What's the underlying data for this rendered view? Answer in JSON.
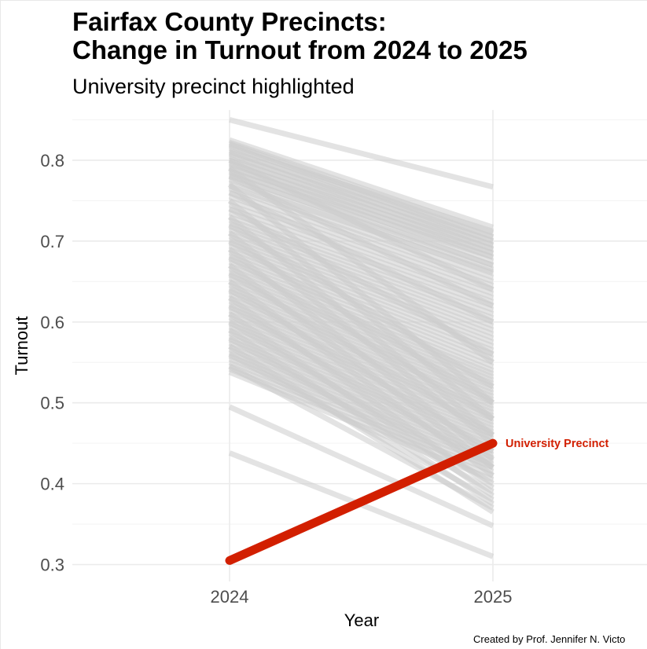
{
  "chart_data": {
    "type": "line",
    "title_lines": [
      "Fairfax County Precincts:",
      "Change in Turnout from 2024 to 2025"
    ],
    "subtitle": "University precinct highlighted",
    "xlabel": "Year",
    "ylabel": "Turnout",
    "categories": [
      "2024",
      "2025"
    ],
    "ylim": [
      0.285,
      0.865
    ],
    "y_ticks": [
      0.3,
      0.4,
      0.5,
      0.6,
      0.7,
      0.8
    ],
    "y_tick_labels": [
      "0.3",
      "0.4",
      "0.5",
      "0.6",
      "0.7",
      "0.8"
    ],
    "grid": true,
    "background_series_color": "#cccccc",
    "highlight": {
      "name": "University Precinct",
      "color": "#d21f00",
      "values": [
        0.305,
        0.45
      ]
    },
    "background_series": [
      [
        0.85,
        0.767
      ],
      [
        0.825,
        0.717
      ],
      [
        0.822,
        0.71
      ],
      [
        0.82,
        0.705
      ],
      [
        0.818,
        0.7
      ],
      [
        0.815,
        0.712
      ],
      [
        0.812,
        0.695
      ],
      [
        0.81,
        0.705
      ],
      [
        0.808,
        0.69
      ],
      [
        0.805,
        0.7
      ],
      [
        0.802,
        0.685
      ],
      [
        0.8,
        0.695
      ],
      [
        0.797,
        0.68
      ],
      [
        0.795,
        0.69
      ],
      [
        0.792,
        0.675
      ],
      [
        0.79,
        0.685
      ],
      [
        0.787,
        0.67
      ],
      [
        0.785,
        0.68
      ],
      [
        0.782,
        0.665
      ],
      [
        0.78,
        0.67
      ],
      [
        0.776,
        0.66
      ],
      [
        0.772,
        0.662
      ],
      [
        0.768,
        0.655
      ],
      [
        0.765,
        0.65
      ],
      [
        0.76,
        0.645
      ],
      [
        0.755,
        0.64
      ],
      [
        0.75,
        0.635
      ],
      [
        0.745,
        0.63
      ],
      [
        0.74,
        0.625
      ],
      [
        0.735,
        0.62
      ],
      [
        0.73,
        0.615
      ],
      [
        0.726,
        0.61
      ],
      [
        0.722,
        0.605
      ],
      [
        0.718,
        0.6
      ],
      [
        0.714,
        0.595
      ],
      [
        0.71,
        0.59
      ],
      [
        0.706,
        0.585
      ],
      [
        0.702,
        0.58
      ],
      [
        0.698,
        0.575
      ],
      [
        0.694,
        0.57
      ],
      [
        0.69,
        0.565
      ],
      [
        0.686,
        0.56
      ],
      [
        0.682,
        0.555
      ],
      [
        0.678,
        0.55
      ],
      [
        0.674,
        0.545
      ],
      [
        0.67,
        0.54
      ],
      [
        0.666,
        0.536
      ],
      [
        0.662,
        0.532
      ],
      [
        0.658,
        0.528
      ],
      [
        0.654,
        0.524
      ],
      [
        0.65,
        0.52
      ],
      [
        0.646,
        0.516
      ],
      [
        0.642,
        0.512
      ],
      [
        0.638,
        0.508
      ],
      [
        0.634,
        0.504
      ],
      [
        0.63,
        0.5
      ],
      [
        0.626,
        0.496
      ],
      [
        0.622,
        0.492
      ],
      [
        0.618,
        0.488
      ],
      [
        0.614,
        0.484
      ],
      [
        0.61,
        0.48
      ],
      [
        0.606,
        0.476
      ],
      [
        0.602,
        0.472
      ],
      [
        0.598,
        0.468
      ],
      [
        0.594,
        0.464
      ],
      [
        0.59,
        0.46
      ],
      [
        0.586,
        0.456
      ],
      [
        0.582,
        0.452
      ],
      [
        0.578,
        0.448
      ],
      [
        0.574,
        0.444
      ],
      [
        0.57,
        0.44
      ],
      [
        0.566,
        0.436
      ],
      [
        0.562,
        0.432
      ],
      [
        0.558,
        0.428
      ],
      [
        0.554,
        0.424
      ],
      [
        0.55,
        0.42
      ],
      [
        0.546,
        0.415
      ],
      [
        0.542,
        0.41
      ],
      [
        0.538,
        0.405
      ],
      [
        0.74,
        0.56
      ],
      [
        0.72,
        0.52
      ],
      [
        0.7,
        0.5
      ],
      [
        0.68,
        0.48
      ],
      [
        0.66,
        0.46
      ],
      [
        0.64,
        0.44
      ],
      [
        0.62,
        0.42
      ],
      [
        0.6,
        0.4
      ],
      [
        0.58,
        0.39
      ],
      [
        0.56,
        0.38
      ],
      [
        0.545,
        0.37
      ],
      [
        0.76,
        0.6
      ],
      [
        0.78,
        0.62
      ],
      [
        0.8,
        0.64
      ],
      [
        0.79,
        0.55
      ],
      [
        0.77,
        0.5
      ],
      [
        0.75,
        0.48
      ],
      [
        0.73,
        0.46
      ],
      [
        0.71,
        0.45
      ],
      [
        0.69,
        0.43
      ],
      [
        0.67,
        0.42
      ],
      [
        0.65,
        0.41
      ],
      [
        0.63,
        0.395
      ],
      [
        0.61,
        0.385
      ],
      [
        0.59,
        0.375
      ],
      [
        0.57,
        0.365
      ],
      [
        0.495,
        0.348
      ],
      [
        0.438,
        0.31
      ]
    ]
  },
  "caption": "Created by Prof. Jennifer N. Victo"
}
